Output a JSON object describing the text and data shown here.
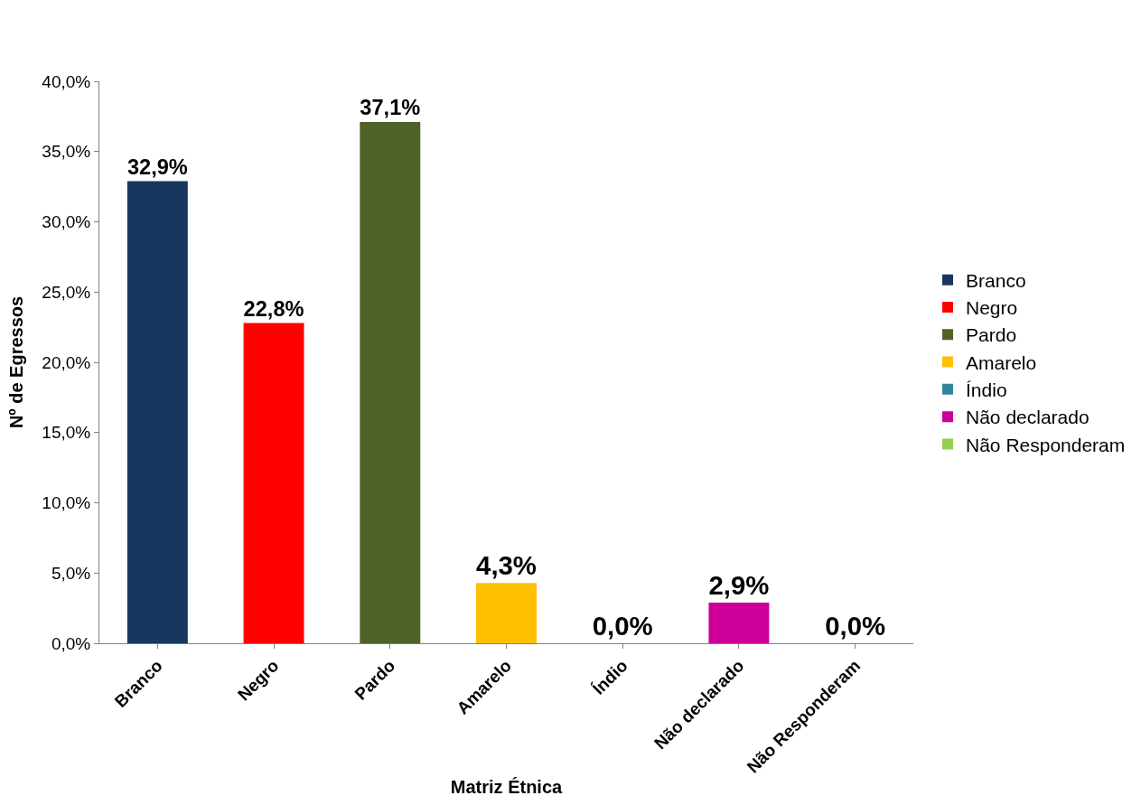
{
  "chart_data": {
    "type": "bar",
    "xlabel": "Matriz Étnica",
    "ylabel": "Nº de Egressos",
    "categories": [
      "Branco",
      "Negro",
      "Pardo",
      "Amarelo",
      "Índio",
      "Não declarado",
      "Não Responderam"
    ],
    "series": [
      {
        "name": "Branco",
        "color": "#17375e",
        "values": [
          32.9,
          null,
          null,
          null,
          null,
          null,
          null
        ],
        "value_labels": [
          "32,9%",
          null,
          null,
          null,
          null,
          null,
          null
        ]
      },
      {
        "name": "Negro",
        "color": "#ff0000",
        "values": [
          null,
          22.8,
          null,
          null,
          null,
          null,
          null
        ],
        "value_labels": [
          null,
          "22,8%",
          null,
          null,
          null,
          null,
          null
        ]
      },
      {
        "name": "Pardo",
        "color": "#4f6228",
        "values": [
          null,
          null,
          37.1,
          null,
          null,
          null,
          null
        ],
        "value_labels": [
          null,
          null,
          "37,1%",
          null,
          null,
          null,
          null
        ]
      },
      {
        "name": "Amarelo",
        "color": "#ffc000",
        "values": [
          null,
          null,
          null,
          4.3,
          null,
          null,
          null
        ],
        "value_labels": [
          null,
          null,
          null,
          "4,3%",
          null,
          null,
          null
        ]
      },
      {
        "name": "Índio",
        "color": "#31859c",
        "values": [
          null,
          null,
          null,
          null,
          0.0,
          null,
          null
        ],
        "value_labels": [
          null,
          null,
          null,
          null,
          "0,0%",
          null,
          null
        ]
      },
      {
        "name": "Não declarado",
        "color": "#cc0099",
        "values": [
          null,
          null,
          null,
          null,
          null,
          2.9,
          null
        ],
        "value_labels": [
          null,
          null,
          null,
          null,
          null,
          "2,9%",
          null
        ]
      },
      {
        "name": "Não Responderam",
        "color": "#92d050",
        "values": [
          null,
          null,
          null,
          null,
          null,
          null,
          0.0
        ],
        "value_labels": [
          null,
          null,
          null,
          null,
          null,
          null,
          "0,0%"
        ]
      }
    ],
    "ylim": [
      0,
      40
    ],
    "yticks": [
      {
        "value": 0,
        "label": "0,0%"
      },
      {
        "value": 5,
        "label": "5,0%"
      },
      {
        "value": 10,
        "label": "10,0%"
      },
      {
        "value": 15,
        "label": "15,0%"
      },
      {
        "value": 20,
        "label": "20,0%"
      },
      {
        "value": 25,
        "label": "25,0%"
      },
      {
        "value": 30,
        "label": "30,0%"
      },
      {
        "value": 35,
        "label": "35,0%"
      },
      {
        "value": 40,
        "label": "40,0%"
      }
    ],
    "legend": "right"
  }
}
